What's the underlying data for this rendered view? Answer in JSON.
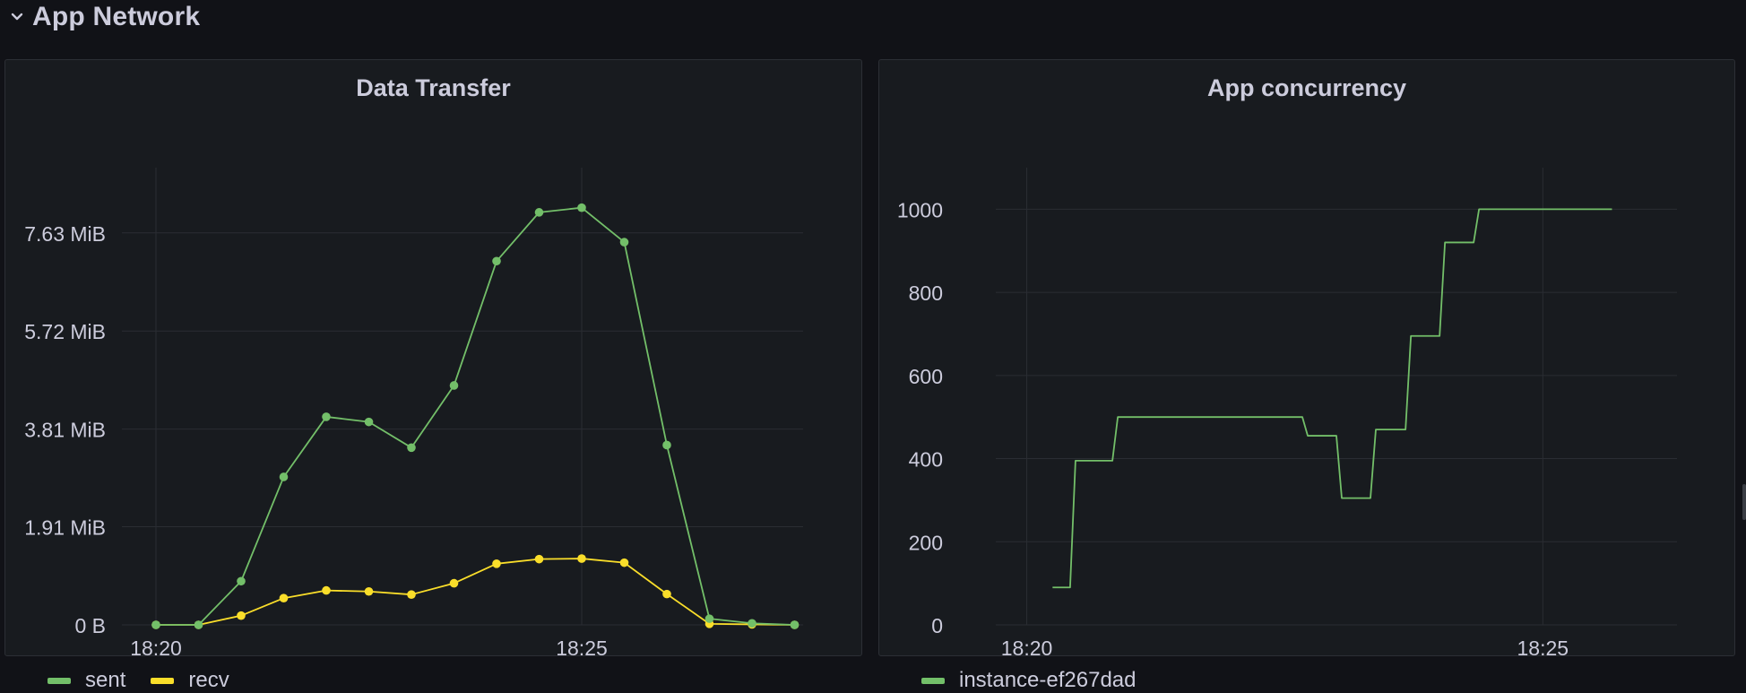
{
  "row": {
    "title": "App Network"
  },
  "panels": {
    "left": {
      "title": "Data Transfer"
    },
    "right": {
      "title": "App concurrency"
    }
  },
  "chart_data": [
    {
      "type": "line",
      "title": "Data Transfer",
      "xlabel": "",
      "ylabel": "",
      "x_unit": "time (minutes)",
      "x_ticks": [
        {
          "value": "18:20",
          "minutes": 20
        },
        {
          "value": "18:25",
          "minutes": 25
        }
      ],
      "xlim": [
        "18:19.6",
        "18:27.6"
      ],
      "y_ticks": [
        "0 B",
        "1.91 MiB",
        "3.81 MiB",
        "5.72 MiB",
        "7.63 MiB"
      ],
      "y_unit": "MiB",
      "ylim": [
        0,
        8.9
      ],
      "grid": true,
      "legend_position": "bottom-left",
      "series": [
        {
          "name": "sent",
          "color": "#73bf69",
          "show_points": true,
          "x": [
            "18:20.0",
            "18:20.5",
            "18:21.0",
            "18:21.5",
            "18:22.0",
            "18:22.5",
            "18:23.0",
            "18:23.5",
            "18:24.0",
            "18:24.5",
            "18:25.0",
            "18:25.5",
            "18:26.0",
            "18:26.5",
            "18:27.0",
            "18:27.5"
          ],
          "values": [
            0,
            0,
            0.85,
            2.88,
            4.05,
            3.95,
            3.45,
            4.66,
            7.08,
            8.03,
            8.12,
            7.45,
            3.5,
            0.12,
            0.03,
            0
          ]
        },
        {
          "name": "recv",
          "color": "#fade2a",
          "show_points": true,
          "x": [
            "18:20.0",
            "18:20.5",
            "18:21.0",
            "18:21.5",
            "18:22.0",
            "18:22.5",
            "18:23.0",
            "18:23.5",
            "18:24.0",
            "18:24.5",
            "18:25.0",
            "18:25.5",
            "18:26.0",
            "18:26.5",
            "18:27.0",
            "18:27.5"
          ],
          "values": [
            0,
            0,
            0.18,
            0.52,
            0.67,
            0.65,
            0.59,
            0.81,
            1.19,
            1.28,
            1.29,
            1.21,
            0.6,
            0.02,
            0.01,
            0
          ]
        }
      ]
    },
    {
      "type": "line",
      "title": "App concurrency",
      "xlabel": "",
      "ylabel": "",
      "x_ticks": [
        "18:20",
        "18:25"
      ],
      "xlim": [
        "18:19.7",
        "18:26.3"
      ],
      "y_ticks": [
        0,
        200,
        400,
        600,
        800,
        1000
      ],
      "ylim": [
        0,
        1100
      ],
      "grid": true,
      "legend_position": "bottom-left",
      "series": [
        {
          "name": "instance-ef267dad",
          "color": "#73bf69",
          "interpolation": "step",
          "x": [
            "18:20.25",
            "18:20.42",
            "18:20.67",
            "18:20.83",
            "18:21.08",
            "18:21.25",
            "18:21.42",
            "18:21.58",
            "18:21.75",
            "18:22.0",
            "18:22.17",
            "18:22.33",
            "18:22.5",
            "18:22.67",
            "18:22.83",
            "18:23.0",
            "18:23.17",
            "18:23.33",
            "18:23.5",
            "18:23.67",
            "18:23.83",
            "18:24.0",
            "18:24.17",
            "18:24.33",
            "18:24.5",
            "18:24.67",
            "18:24.83",
            "18:25.0",
            "18:25.17",
            "18:25.33",
            "18:25.5",
            "18:25.67"
          ],
          "values": [
            90,
            90,
            395,
            395,
            500,
            500,
            500,
            500,
            500,
            500,
            500,
            500,
            500,
            500,
            455,
            455,
            305,
            305,
            470,
            470,
            695,
            695,
            920,
            920,
            1000,
            1000,
            1000,
            1000,
            1000,
            1000,
            1000,
            1000
          ]
        }
      ]
    }
  ]
}
